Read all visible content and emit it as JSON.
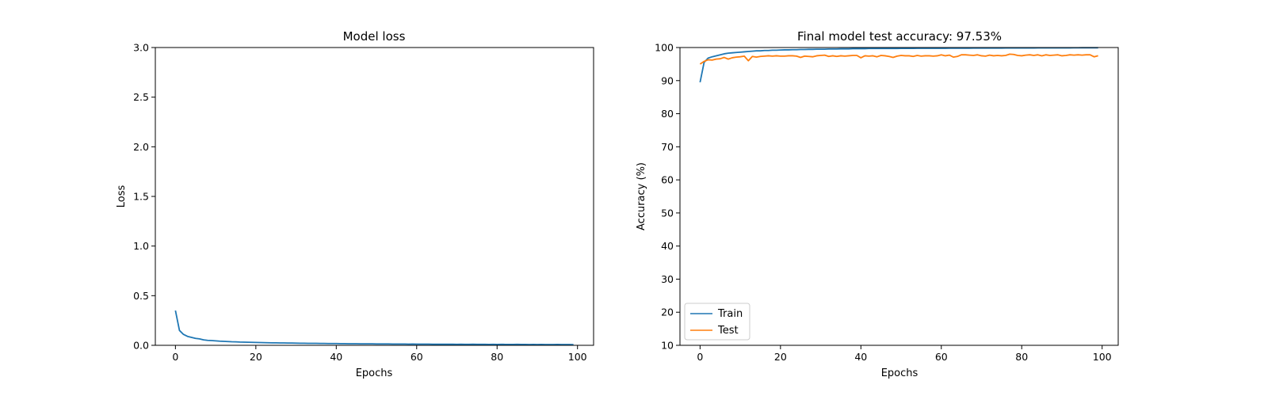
{
  "chart_data": [
    {
      "type": "line",
      "title": "Model loss",
      "xlabel": "Epochs",
      "ylabel": "Loss",
      "xlim": [
        -5,
        104
      ],
      "ylim": [
        0,
        3.0
      ],
      "xticks": [
        0,
        20,
        40,
        60,
        80,
        100
      ],
      "yticks": [
        0.0,
        0.5,
        1.0,
        1.5,
        2.0,
        2.5,
        3.0
      ],
      "ytick_labels": [
        "0.0",
        "0.5",
        "1.0",
        "1.5",
        "2.0",
        "2.5",
        "3.0"
      ],
      "grid": false,
      "series": [
        {
          "color": "#1f77b4",
          "x": [
            0,
            1,
            2,
            3,
            4,
            5,
            6,
            7,
            8,
            9,
            10,
            11,
            12,
            13,
            14,
            15,
            16,
            17,
            18,
            19,
            20,
            21,
            22,
            23,
            24,
            25,
            26,
            27,
            28,
            29,
            30,
            31,
            32,
            33,
            34,
            35,
            36,
            37,
            38,
            39,
            40,
            41,
            42,
            43,
            44,
            45,
            46,
            47,
            48,
            49,
            50,
            51,
            52,
            53,
            54,
            55,
            56,
            57,
            58,
            59,
            60,
            61,
            62,
            63,
            64,
            65,
            66,
            67,
            68,
            69,
            70,
            71,
            72,
            73,
            74,
            75,
            76,
            77,
            78,
            79,
            80,
            81,
            82,
            83,
            84,
            85,
            86,
            87,
            88,
            89,
            90,
            91,
            92,
            93,
            94,
            95,
            96,
            97,
            98,
            99
          ],
          "values": [
            0.35,
            0.15,
            0.11,
            0.09,
            0.08,
            0.07,
            0.065,
            0.055,
            0.05,
            0.048,
            0.045,
            0.042,
            0.04,
            0.038,
            0.036,
            0.035,
            0.033,
            0.032,
            0.031,
            0.03,
            0.029,
            0.028,
            0.027,
            0.026,
            0.025,
            0.025,
            0.024,
            0.024,
            0.023,
            0.023,
            0.022,
            0.021,
            0.021,
            0.02,
            0.02,
            0.02,
            0.019,
            0.019,
            0.018,
            0.018,
            0.018,
            0.017,
            0.017,
            0.016,
            0.016,
            0.016,
            0.015,
            0.015,
            0.015,
            0.015,
            0.014,
            0.014,
            0.014,
            0.014,
            0.013,
            0.013,
            0.013,
            0.013,
            0.012,
            0.013,
            0.012,
            0.012,
            0.012,
            0.012,
            0.011,
            0.011,
            0.011,
            0.011,
            0.011,
            0.011,
            0.01,
            0.011,
            0.01,
            0.01,
            0.011,
            0.01,
            0.01,
            0.01,
            0.009,
            0.01,
            0.009,
            0.01,
            0.009,
            0.009,
            0.009,
            0.01,
            0.009,
            0.009,
            0.008,
            0.009,
            0.008,
            0.009,
            0.008,
            0.008,
            0.008,
            0.009,
            0.008,
            0.008,
            0.008,
            0.007
          ]
        }
      ]
    },
    {
      "type": "line",
      "title": "Final model test accuracy: 97.53%",
      "xlabel": "Epochs",
      "ylabel": "Accuracy (%)",
      "xlim": [
        -5,
        104
      ],
      "ylim": [
        10,
        100
      ],
      "xticks": [
        0,
        20,
        40,
        60,
        80,
        100
      ],
      "yticks": [
        10,
        20,
        30,
        40,
        50,
        60,
        70,
        80,
        90,
        100
      ],
      "ytick_labels": [
        "10",
        "20",
        "30",
        "40",
        "50",
        "60",
        "70",
        "80",
        "90",
        "100"
      ],
      "grid": false,
      "legend": "lower-left",
      "series": [
        {
          "name": "Train",
          "color": "#1f77b4",
          "x": [
            0,
            1,
            2,
            3,
            4,
            5,
            6,
            7,
            8,
            9,
            10,
            11,
            12,
            13,
            14,
            15,
            16,
            17,
            18,
            19,
            20,
            21,
            22,
            23,
            24,
            25,
            26,
            27,
            28,
            29,
            30,
            31,
            32,
            33,
            34,
            35,
            36,
            37,
            38,
            39,
            40,
            41,
            42,
            43,
            44,
            45,
            46,
            47,
            48,
            49,
            50,
            51,
            52,
            53,
            54,
            55,
            56,
            57,
            58,
            59,
            60,
            61,
            62,
            63,
            64,
            65,
            66,
            67,
            68,
            69,
            70,
            71,
            72,
            73,
            74,
            75,
            76,
            77,
            78,
            79,
            80,
            81,
            82,
            83,
            84,
            85,
            86,
            87,
            88,
            89,
            90,
            91,
            92,
            93,
            94,
            95,
            96,
            97,
            98,
            99
          ],
          "values": [
            89.5,
            95.5,
            96.8,
            97.2,
            97.5,
            97.8,
            98.1,
            98.3,
            98.4,
            98.5,
            98.6,
            98.7,
            98.8,
            98.9,
            99.0,
            99.0,
            99.1,
            99.1,
            99.2,
            99.2,
            99.25,
            99.3,
            99.3,
            99.35,
            99.35,
            99.4,
            99.4,
            99.45,
            99.45,
            99.5,
            99.5,
            99.5,
            99.55,
            99.55,
            99.55,
            99.6,
            99.6,
            99.6,
            99.65,
            99.65,
            99.65,
            99.65,
            99.7,
            99.7,
            99.7,
            99.7,
            99.7,
            99.72,
            99.72,
            99.72,
            99.74,
            99.74,
            99.74,
            99.75,
            99.76,
            99.76,
            99.76,
            99.77,
            99.77,
            99.78,
            99.78,
            99.78,
            99.79,
            99.79,
            99.8,
            99.8,
            99.8,
            99.8,
            99.82,
            99.82,
            99.82,
            99.83,
            99.83,
            99.84,
            99.84,
            99.84,
            99.85,
            99.85,
            99.86,
            99.86,
            99.86,
            99.87,
            99.87,
            99.87,
            99.88,
            99.88,
            99.88,
            99.89,
            99.89,
            99.9,
            99.9,
            99.9,
            99.9,
            99.91,
            99.91,
            99.92,
            99.92,
            99.92,
            99.93,
            99.93
          ]
        },
        {
          "name": "Test",
          "color": "#ff7f0e",
          "x": [
            0,
            1,
            2,
            3,
            4,
            5,
            6,
            7,
            8,
            9,
            10,
            11,
            12,
            13,
            14,
            15,
            16,
            17,
            18,
            19,
            20,
            21,
            22,
            23,
            24,
            25,
            26,
            27,
            28,
            29,
            30,
            31,
            32,
            33,
            34,
            35,
            36,
            37,
            38,
            39,
            40,
            41,
            42,
            43,
            44,
            45,
            46,
            47,
            48,
            49,
            50,
            51,
            52,
            53,
            54,
            55,
            56,
            57,
            58,
            59,
            60,
            61,
            62,
            63,
            64,
            65,
            66,
            67,
            68,
            69,
            70,
            71,
            72,
            73,
            74,
            75,
            76,
            77,
            78,
            79,
            80,
            81,
            82,
            83,
            84,
            85,
            86,
            87,
            88,
            89,
            90,
            91,
            92,
            93,
            94,
            95,
            96,
            97,
            98,
            99
          ],
          "values": [
            95.0,
            95.8,
            96.3,
            96.2,
            96.5,
            96.6,
            97.0,
            96.5,
            96.9,
            97.1,
            97.2,
            97.4,
            96.0,
            97.3,
            97.1,
            97.3,
            97.4,
            97.5,
            97.4,
            97.5,
            97.4,
            97.4,
            97.5,
            97.5,
            97.4,
            97.0,
            97.4,
            97.3,
            97.2,
            97.5,
            97.6,
            97.7,
            97.3,
            97.5,
            97.3,
            97.5,
            97.4,
            97.5,
            97.6,
            97.6,
            96.9,
            97.5,
            97.4,
            97.5,
            97.2,
            97.6,
            97.5,
            97.3,
            97.0,
            97.4,
            97.6,
            97.5,
            97.5,
            97.3,
            97.6,
            97.4,
            97.5,
            97.5,
            97.4,
            97.5,
            97.8,
            97.5,
            97.7,
            97.1,
            97.3,
            97.8,
            97.8,
            97.7,
            97.6,
            97.8,
            97.5,
            97.4,
            97.7,
            97.5,
            97.6,
            97.5,
            97.6,
            98.0,
            97.9,
            97.6,
            97.5,
            97.7,
            97.8,
            97.6,
            97.8,
            97.5,
            97.8,
            97.6,
            97.7,
            97.8,
            97.5,
            97.6,
            97.8,
            97.7,
            97.8,
            97.7,
            97.8,
            97.8,
            97.2,
            97.53
          ]
        }
      ]
    }
  ]
}
